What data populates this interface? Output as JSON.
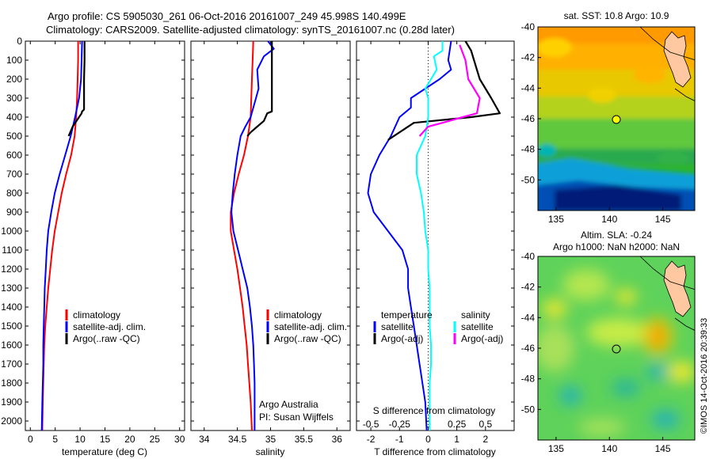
{
  "header": {
    "line1": "Argo profile: CS 5905030_261 06-Oct-2016 20161007_249 45.998S 140.499E",
    "line2": "Climatology: CARS2009. Satellite-adjusted climatology: synTS_20161007.nc (0.28d later)"
  },
  "colors": {
    "climatology": "#ff0000",
    "satellite": "#0000ff",
    "argo": "#000000",
    "sal_satellite": "#00ffff",
    "sal_argo": "#ff00ff",
    "land": "#ffc8a0"
  },
  "legend_profile": {
    "climatology": "climatology",
    "satellite": "satellite-adj. clim.",
    "argo": "Argo(..raw -QC)"
  },
  "legend_diff": {
    "temp_title": "temperature",
    "sal_title": "salinity",
    "satellite": "satellite",
    "argo": "Argo(-adj)"
  },
  "credit": {
    "line1": "Argo Australia",
    "line2": "PI: Susan Wijffels"
  },
  "diff_top_label": "S difference from climatology",
  "timestamp": "©IMOS 14-Oct-2016 20:39:33",
  "maps": {
    "sst_title": "sat. SST: 10.8 Argo: 10.9",
    "sla_title1": "Altim. SLA: -0.24",
    "sla_title2": "Argo h1000: NaN h2000: NaN",
    "lat_ticks": [
      "-40",
      "-42",
      "-44",
      "-46",
      "-48",
      "-50"
    ],
    "lon_ticks": [
      "135",
      "140",
      "145"
    ]
  },
  "chart_data": [
    {
      "type": "line",
      "xlabel": "temperature (deg C)",
      "xlim": [
        -1,
        31
      ],
      "ylim": [
        2050,
        0
      ],
      "x_ticks": [
        "0",
        "5",
        "10",
        "15",
        "20",
        "25",
        "30"
      ],
      "y_ticks": [
        "0",
        "100",
        "200",
        "300",
        "400",
        "500",
        "600",
        "700",
        "800",
        "900",
        "1000",
        "1100",
        "1200",
        "1300",
        "1400",
        "1500",
        "1600",
        "1700",
        "1800",
        "1900",
        "2000"
      ],
      "series": [
        {
          "name": "climatology",
          "color": "#ff0000",
          "points": [
            [
              9.6,
              0
            ],
            [
              9.6,
              100
            ],
            [
              9.5,
              200
            ],
            [
              9.4,
              300
            ],
            [
              9.2,
              400
            ],
            [
              8.9,
              500
            ],
            [
              8.2,
              600
            ],
            [
              7.2,
              700
            ],
            [
              6.3,
              800
            ],
            [
              5.6,
              900
            ],
            [
              4.9,
              1000
            ],
            [
              4.4,
              1100
            ],
            [
              4.0,
              1200
            ],
            [
              3.6,
              1300
            ],
            [
              3.3,
              1400
            ],
            [
              3.0,
              1500
            ],
            [
              2.8,
              1600
            ],
            [
              2.7,
              1700
            ],
            [
              2.6,
              1800
            ],
            [
              2.5,
              1900
            ],
            [
              2.4,
              2050
            ]
          ]
        },
        {
          "name": "satellite-adj. clim.",
          "color": "#0000ff",
          "points": [
            [
              10.4,
              0
            ],
            [
              10.3,
              100
            ],
            [
              10.2,
              200
            ],
            [
              9.8,
              300
            ],
            [
              9.0,
              400
            ],
            [
              8.1,
              500
            ],
            [
              7.0,
              600
            ],
            [
              5.9,
              700
            ],
            [
              4.9,
              800
            ],
            [
              4.2,
              900
            ],
            [
              3.6,
              1000
            ],
            [
              3.3,
              1100
            ],
            [
              3.1,
              1200
            ],
            [
              2.9,
              1300
            ],
            [
              2.8,
              1400
            ],
            [
              2.7,
              1500
            ],
            [
              2.6,
              1600
            ],
            [
              2.6,
              1700
            ],
            [
              2.5,
              1800
            ],
            [
              2.4,
              1900
            ],
            [
              2.3,
              2050
            ]
          ]
        },
        {
          "name": "Argo(..raw -QC)",
          "color": "#000000",
          "points": [
            [
              10.9,
              0
            ],
            [
              10.9,
              100
            ],
            [
              10.8,
              200
            ],
            [
              10.8,
              300
            ],
            [
              10.8,
              360
            ],
            [
              10.4,
              370
            ],
            [
              10.3,
              380
            ],
            [
              8.5,
              450
            ],
            [
              7.7,
              500
            ]
          ]
        }
      ]
    },
    {
      "type": "line",
      "xlabel": "salinity",
      "xlim": [
        33.8,
        36.2
      ],
      "ylim": [
        2050,
        0
      ],
      "x_ticks": [
        "34",
        "34.5",
        "35",
        "35.5",
        "36"
      ],
      "series": [
        {
          "name": "climatology",
          "color": "#ff0000",
          "points": [
            [
              34.74,
              0
            ],
            [
              34.73,
              100
            ],
            [
              34.72,
              200
            ],
            [
              34.71,
              300
            ],
            [
              34.7,
              400
            ],
            [
              34.66,
              500
            ],
            [
              34.6,
              600
            ],
            [
              34.52,
              700
            ],
            [
              34.45,
              800
            ],
            [
              34.4,
              900
            ],
            [
              34.4,
              1000
            ],
            [
              34.45,
              1100
            ],
            [
              34.5,
              1200
            ],
            [
              34.54,
              1300
            ],
            [
              34.58,
              1400
            ],
            [
              34.61,
              1500
            ],
            [
              34.64,
              1600
            ],
            [
              34.66,
              1700
            ],
            [
              34.68,
              1800
            ],
            [
              34.7,
              1900
            ],
            [
              34.72,
              2050
            ]
          ]
        },
        {
          "name": "satellite-adj. clim.",
          "color": "#0000ff",
          "points": [
            [
              34.96,
              0
            ],
            [
              35.05,
              40
            ],
            [
              34.9,
              80
            ],
            [
              34.8,
              150
            ],
            [
              34.82,
              250
            ],
            [
              34.78,
              300
            ],
            [
              34.7,
              400
            ],
            [
              34.62,
              450
            ],
            [
              34.55,
              500
            ],
            [
              34.5,
              600
            ],
            [
              34.46,
              700
            ],
            [
              34.43,
              800
            ],
            [
              34.41,
              900
            ],
            [
              34.44,
              1000
            ],
            [
              34.51,
              1100
            ],
            [
              34.58,
              1200
            ],
            [
              34.65,
              1300
            ],
            [
              34.69,
              1400
            ],
            [
              34.72,
              1500
            ],
            [
              34.74,
              1600
            ],
            [
              34.75,
              1700
            ],
            [
              34.76,
              1800
            ],
            [
              34.76,
              1900
            ],
            [
              34.76,
              2050
            ]
          ]
        },
        {
          "name": "Argo(..raw -QC)",
          "color": "#000000",
          "points": [
            [
              35.02,
              0
            ],
            [
              35.02,
              100
            ],
            [
              35.02,
              200
            ],
            [
              35.02,
              300
            ],
            [
              35.02,
              370
            ],
            [
              34.95,
              380
            ],
            [
              34.9,
              420
            ],
            [
              34.8,
              450
            ],
            [
              34.7,
              480
            ],
            [
              34.65,
              500
            ]
          ]
        }
      ]
    },
    {
      "type": "line",
      "xlabel": "T difference from climatology",
      "xlim": [
        -2.5,
        3.0
      ],
      "ylim": [
        2050,
        0
      ],
      "x_ticks": [
        "-2",
        "-1",
        "0",
        "1",
        "2"
      ],
      "top_x_ticks": [
        "-0.5",
        "-0.25",
        "0",
        "0.25",
        "0.5"
      ],
      "series": [
        {
          "name": "temperature satellite",
          "color": "#0000ff",
          "points": [
            [
              0.8,
              0
            ],
            [
              0.7,
              100
            ],
            [
              0.8,
              150
            ],
            [
              0.4,
              200
            ],
            [
              -0.6,
              300
            ],
            [
              -0.6,
              350
            ],
            [
              -1.0,
              400
            ],
            [
              -1.3,
              500
            ],
            [
              -1.7,
              600
            ],
            [
              -2.0,
              700
            ],
            [
              -2.1,
              800
            ],
            [
              -1.9,
              900
            ],
            [
              -1.4,
              1000
            ],
            [
              -0.9,
              1100
            ],
            [
              -0.7,
              1200
            ],
            [
              -0.7,
              1300
            ],
            [
              -0.6,
              1400
            ],
            [
              -0.5,
              1500
            ],
            [
              -0.4,
              1600
            ],
            [
              -0.3,
              1700
            ],
            [
              -0.2,
              1800
            ],
            [
              -0.1,
              1900
            ],
            [
              -0.05,
              2050
            ]
          ]
        },
        {
          "name": "temperature Argo(-adj)",
          "color": "#000000",
          "points": [
            [
              1.3,
              0
            ],
            [
              1.5,
              50
            ],
            [
              1.6,
              100
            ],
            [
              1.8,
              200
            ],
            [
              2.2,
              300
            ],
            [
              2.5,
              380
            ],
            [
              1.5,
              400
            ],
            [
              -0.5,
              430
            ],
            [
              -1.0,
              480
            ],
            [
              -1.4,
              520
            ]
          ]
        },
        {
          "name": "salinity satellite",
          "color": "#00ffff",
          "points": [
            [
              0.5,
              0
            ],
            [
              0.5,
              50
            ],
            [
              0.2,
              80
            ],
            [
              0.3,
              150
            ],
            [
              -0.1,
              250
            ],
            [
              0.0,
              300
            ],
            [
              0.0,
              400
            ],
            [
              -0.1,
              500
            ],
            [
              -0.4,
              600
            ],
            [
              -0.4,
              700
            ],
            [
              -0.25,
              800
            ],
            [
              -0.15,
              900
            ],
            [
              -0.1,
              1000
            ],
            [
              0.0,
              1100
            ],
            [
              0.0,
              1200
            ],
            [
              0.05,
              1300
            ],
            [
              0.05,
              1400
            ],
            [
              0.05,
              1500
            ],
            [
              0.1,
              1600
            ],
            [
              0.1,
              1700
            ],
            [
              0.05,
              1800
            ],
            [
              0.05,
              1900
            ],
            [
              0.05,
              2050
            ]
          ]
        },
        {
          "name": "salinity Argo(-adj)",
          "color": "#ff00ff",
          "points": [
            [
              1.1,
              20
            ],
            [
              1.3,
              100
            ],
            [
              1.4,
              200
            ],
            [
              1.8,
              300
            ],
            [
              1.7,
              380
            ],
            [
              1.2,
              400
            ],
            [
              0.5,
              430
            ],
            [
              0.0,
              450
            ],
            [
              -0.3,
              500
            ]
          ]
        }
      ]
    }
  ]
}
